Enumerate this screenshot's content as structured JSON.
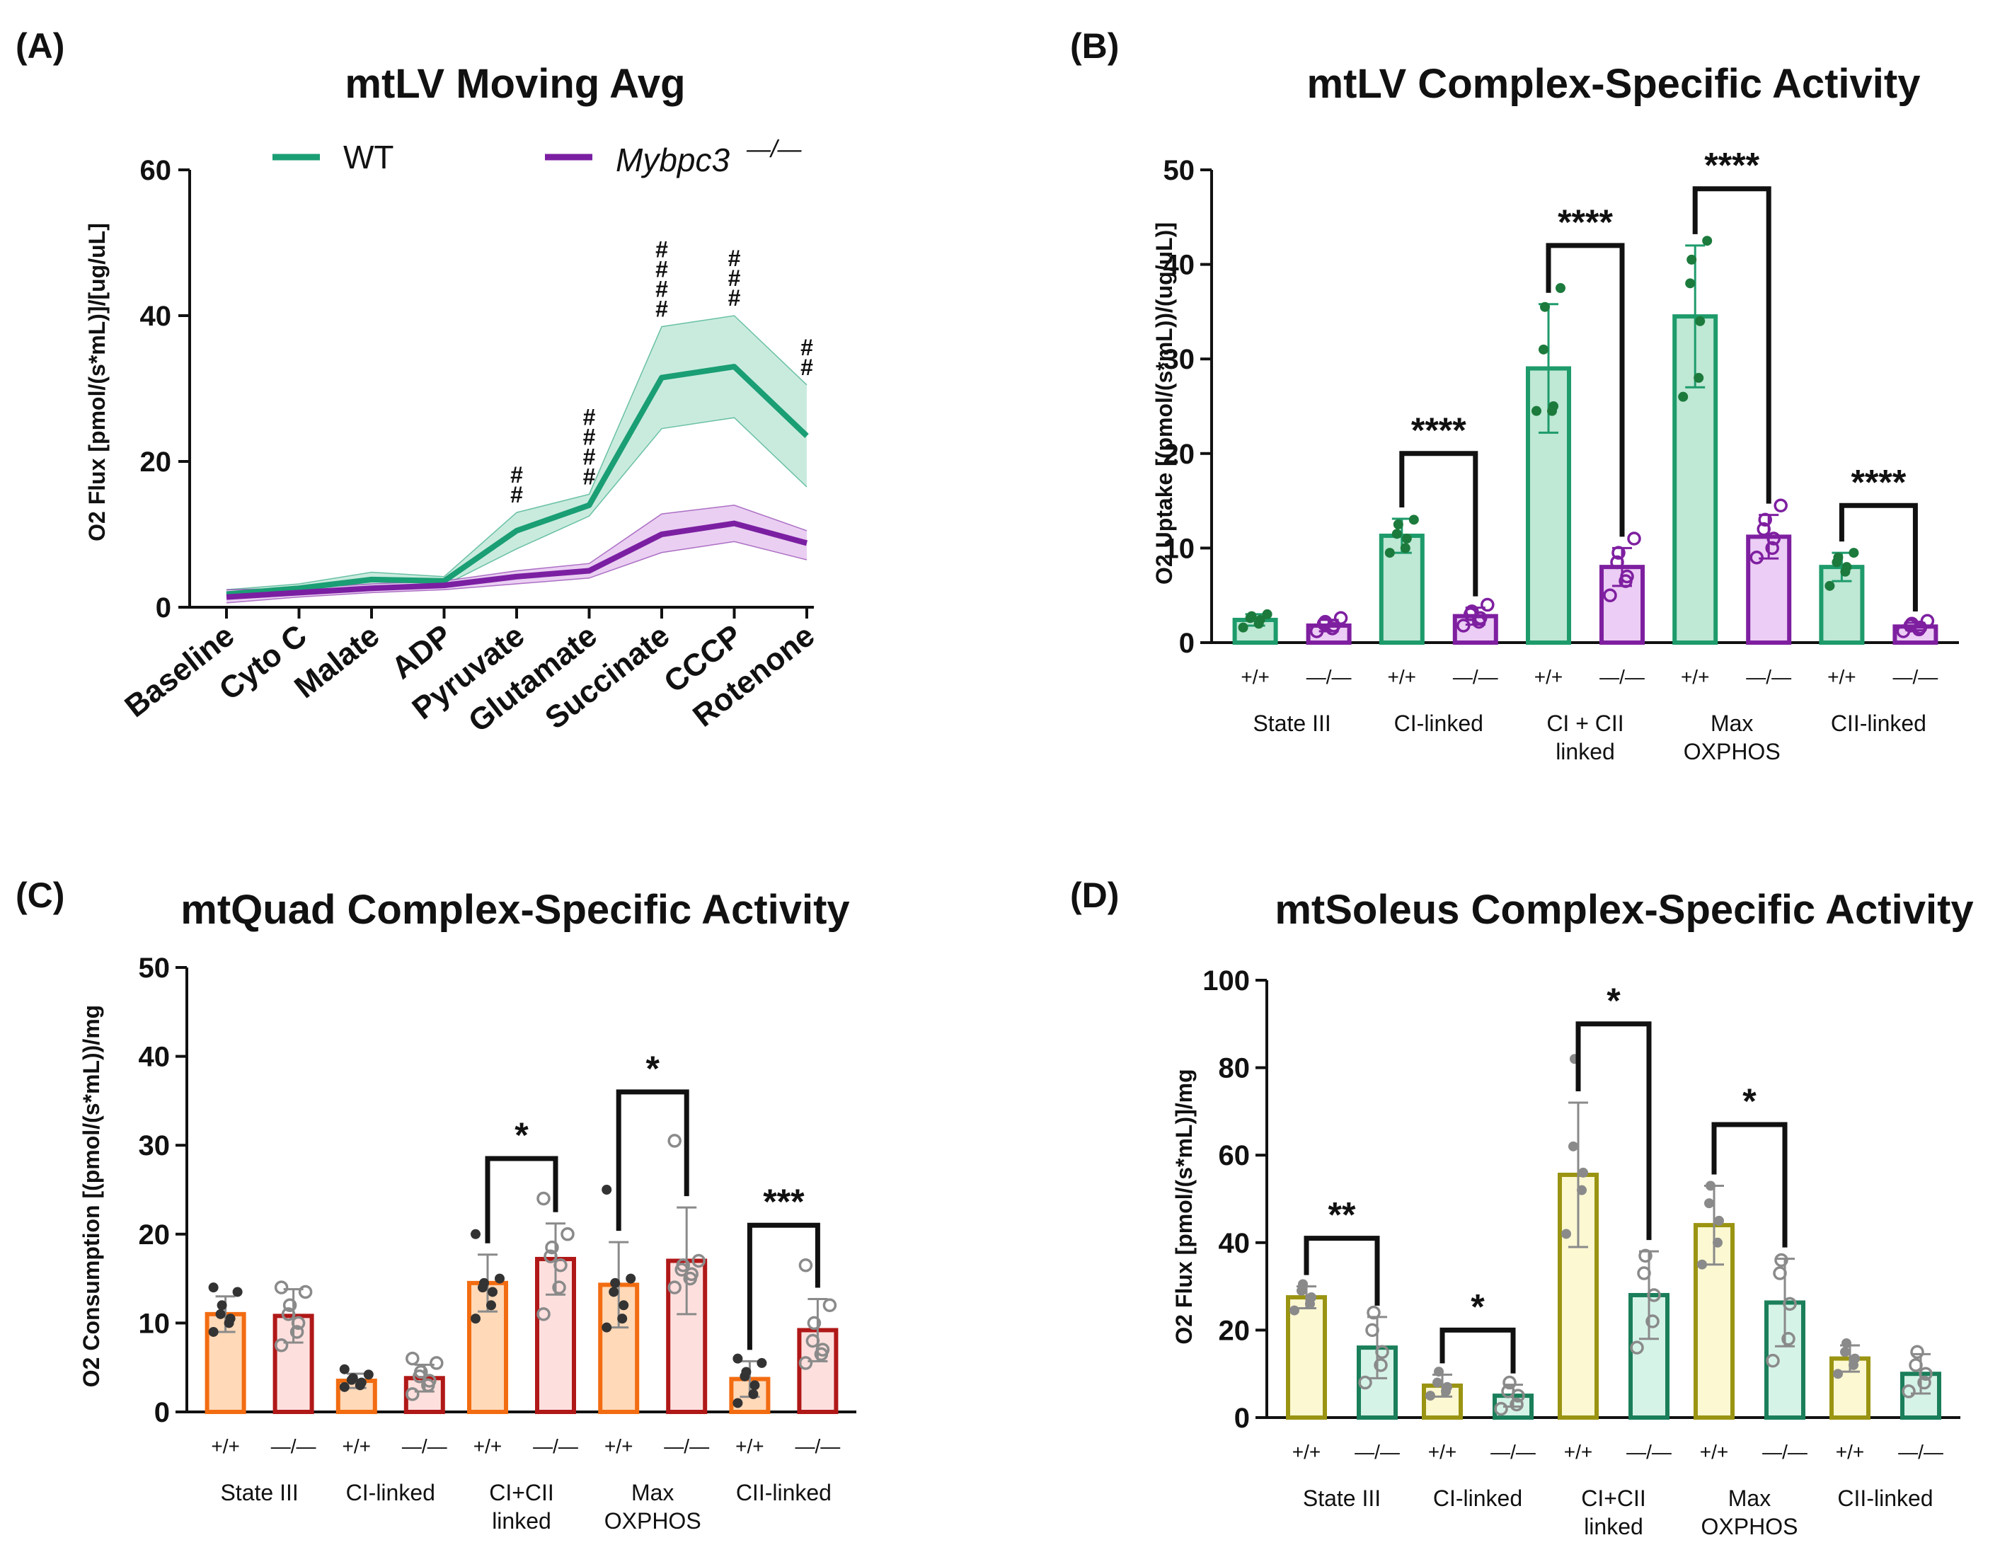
{
  "colors": {
    "wt_line": "#1a9e74",
    "wt_band": "#bfe8d8",
    "ko_line": "#7b1fa2",
    "ko_band": "#e6c7f0",
    "B_wt_fill": "#bfe8d5",
    "B_wt_edge": "#1e9b6b",
    "B_wt_dot": "#1c7a3c",
    "B_ko_fill": "#eccdf5",
    "B_ko_edge": "#7e1fa0",
    "C_wt_fill": "#ffd9b8",
    "C_wt_edge": "#f26c11",
    "C_ko_fill": "#fde0de",
    "C_ko_edge": "#b01818",
    "D_wt_fill": "#fbf8d2",
    "D_wt_edge": "#9a9412",
    "D_ko_fill": "#d6f3e8",
    "D_ko_edge": "#1a7f5a",
    "dot_dark": "#333333",
    "dot_grey": "#8a8a8a"
  },
  "chart_data": [
    {
      "id": "A",
      "panel_label": "(A)",
      "type": "line",
      "title": "mtLV Moving Avg",
      "ylabel": "O2 Flux [pmol/(s*mL)]/[ug/uL]",
      "ylim": [
        0,
        60
      ],
      "yticks": [
        "0",
        "20",
        "40",
        "60"
      ],
      "categories": [
        "Baseline",
        "Cyto C",
        "Malate",
        "ADP",
        "Pyruvate",
        "Glutamate",
        "Succinate",
        "CCCP",
        "Rotenone"
      ],
      "legend": [
        "WT",
        "Mybpc3",
        "—/—"
      ],
      "series": [
        {
          "name": "WT",
          "values": [
            1.8,
            2.6,
            3.8,
            3.6,
            10.5,
            14.0,
            31.5,
            33.0,
            23.5
          ],
          "lower": [
            1.2,
            2.0,
            2.8,
            3.0,
            8.0,
            12.5,
            24.5,
            26.0,
            16.5
          ],
          "upper": [
            2.4,
            3.2,
            4.8,
            4.2,
            13.0,
            15.5,
            38.5,
            40.0,
            30.5
          ]
        },
        {
          "name": "Mybpc3-/-",
          "values": [
            1.4,
            2.0,
            2.6,
            3.0,
            4.2,
            5.0,
            10.0,
            11.5,
            8.8
          ],
          "lower": [
            0.6,
            1.4,
            2.0,
            2.4,
            3.2,
            4.0,
            7.5,
            9.0,
            6.5
          ],
          "upper": [
            2.4,
            2.6,
            3.2,
            3.6,
            5.0,
            6.0,
            12.8,
            14.0,
            10.5
          ]
        }
      ],
      "annotations": [
        {
          "category": "Pyruvate",
          "text": "#",
          "count": 2
        },
        {
          "category": "Glutamate",
          "text": "#",
          "count": 4
        },
        {
          "category": "Succinate",
          "text": "#",
          "count": 4
        },
        {
          "category": "CCCP",
          "text": "#",
          "count": 3
        },
        {
          "category": "Rotenone",
          "text": "#",
          "count": 2
        }
      ]
    },
    {
      "id": "B",
      "panel_label": "(B)",
      "type": "bar",
      "title": "mtLV Complex-Specific Activity",
      "ylabel": "O2 Uptake [(pmol/(s*mL))/(ug/uL)]",
      "ylim": [
        0,
        50
      ],
      "yticks": [
        "0",
        "10",
        "20",
        "30",
        "40",
        "50"
      ],
      "genotype_labels": [
        "+/+",
        "—/—"
      ],
      "categories": [
        [
          "State III"
        ],
        [
          "CI-linked"
        ],
        [
          "CI + CII",
          "linked"
        ],
        [
          "Max",
          "OXPHOS"
        ],
        [
          "CII-linked"
        ]
      ],
      "series": [
        {
          "name": "+/+",
          "values": [
            2.4,
            11.3,
            29.0,
            34.5,
            8.0
          ],
          "errors": [
            0.6,
            1.8,
            6.8,
            7.5,
            1.5
          ],
          "points": [
            [
              1.6,
              2.0,
              2.4,
              2.6,
              2.8,
              3.0
            ],
            [
              9.5,
              10.0,
              11.0,
              11.5,
              12.5,
              13.0
            ],
            [
              24.5,
              24.5,
              25.0,
              31.0,
              35.5,
              37.5
            ],
            [
              26.0,
              28.0,
              34.0,
              38.0,
              40.5,
              42.5
            ],
            [
              6.0,
              7.5,
              8.0,
              8.5,
              9.0,
              9.5
            ]
          ]
        },
        {
          "name": "—/—",
          "values": [
            1.8,
            2.8,
            8.0,
            11.2,
            1.7
          ],
          "errors": [
            0.6,
            0.9,
            2.0,
            2.3,
            0.4
          ],
          "points": [
            [
              1.2,
              1.5,
              1.8,
              2.0,
              2.2,
              2.6
            ],
            [
              1.8,
              2.2,
              2.6,
              3.0,
              3.3,
              4.0
            ],
            [
              5.0,
              6.5,
              7.0,
              8.5,
              9.5,
              11.0
            ],
            [
              9.0,
              10.0,
              11.0,
              12.0,
              13.0,
              14.5
            ],
            [
              1.2,
              1.4,
              1.6,
              1.8,
              2.0,
              2.3
            ]
          ]
        }
      ],
      "significance": [
        {
          "category": 1,
          "label": "****",
          "level": 20
        },
        {
          "category": 2,
          "label": "****",
          "level": 42
        },
        {
          "category": 3,
          "label": "****",
          "level": 48
        },
        {
          "category": 4,
          "label": "****",
          "level": 14.5
        }
      ]
    },
    {
      "id": "C",
      "panel_label": "(C)",
      "type": "bar",
      "title": "mtQuad Complex-Specific Activity",
      "ylabel": "O2 Consumption [(pmol/(s*mL))/mg",
      "ylim": [
        0,
        50
      ],
      "yticks": [
        "0",
        "10",
        "20",
        "30",
        "40",
        "50"
      ],
      "genotype_labels": [
        "+/+",
        "—/—"
      ],
      "categories": [
        [
          "State III"
        ],
        [
          "CI-linked"
        ],
        [
          "CI+CII",
          "linked"
        ],
        [
          "Max",
          "OXPHOS"
        ],
        [
          "CII-linked"
        ]
      ],
      "series": [
        {
          "name": "+/+",
          "values": [
            11.0,
            3.5,
            14.5,
            14.3,
            3.7
          ],
          "errors": [
            2.0,
            0.8,
            3.2,
            4.8,
            2.0
          ],
          "points": [
            [
              9.0,
              10.0,
              10.5,
              11.0,
              12.0,
              13.5,
              14.0
            ],
            [
              2.8,
              3.0,
              3.3,
              3.6,
              3.8,
              4.2,
              4.8
            ],
            [
              10.5,
              12.0,
              13.5,
              14.0,
              14.5,
              15.0,
              20.0
            ],
            [
              9.5,
              10.5,
              12.0,
              13.5,
              14.5,
              15.0,
              25.0
            ],
            [
              1.0,
              2.0,
              3.0,
              4.0,
              4.5,
              5.5,
              6.0
            ]
          ]
        },
        {
          "name": "—/—",
          "values": [
            10.8,
            3.8,
            17.2,
            17.0,
            9.2
          ],
          "errors": [
            3.0,
            1.5,
            4.0,
            6.0,
            3.5
          ],
          "points": [
            [
              7.5,
              9.0,
              10.0,
              11.0,
              12.0,
              13.5,
              14.0
            ],
            [
              2.0,
              3.0,
              3.5,
              4.0,
              4.5,
              5.5,
              6.0
            ],
            [
              11.0,
              14.0,
              16.5,
              17.5,
              18.5,
              20.0,
              24.0
            ],
            [
              14.0,
              15.0,
              15.5,
              16.0,
              16.5,
              17.0,
              30.5
            ],
            [
              5.5,
              6.5,
              7.0,
              8.0,
              10.0,
              12.0,
              16.5
            ]
          ]
        }
      ],
      "significance": [
        {
          "category": 2,
          "label": "*",
          "level": 28.5
        },
        {
          "category": 3,
          "label": "*",
          "level": 36
        },
        {
          "category": 4,
          "label": "***",
          "level": 21
        }
      ]
    },
    {
      "id": "D",
      "panel_label": "(D)",
      "type": "bar",
      "title": "mtSoleus Complex-Specific Activity",
      "ylabel": "O2 Flux [pmol/(s*mL)]/mg",
      "ylim": [
        0,
        100
      ],
      "yticks": [
        "0",
        "20",
        "40",
        "60",
        "80",
        "100"
      ],
      "genotype_labels": [
        "+/+",
        "—/—"
      ],
      "categories": [
        [
          "State III"
        ],
        [
          "CI-linked"
        ],
        [
          "CI+CII",
          "linked"
        ],
        [
          "Max",
          "OXPHOS"
        ],
        [
          "CII-linked"
        ]
      ],
      "series": [
        {
          "name": "+/+",
          "values": [
            27.5,
            7.3,
            55.5,
            44.0,
            13.5
          ],
          "errors": [
            2.5,
            2.5,
            16.5,
            9.0,
            3.0
          ],
          "points": [
            [
              24.5,
              26.0,
              27.5,
              29.0,
              30.5
            ],
            [
              5.0,
              6.0,
              7.0,
              8.0,
              10.5
            ],
            [
              42.0,
              52.0,
              56.0,
              62.0,
              82.0
            ],
            [
              35.0,
              40.0,
              45.0,
              49.0,
              53.0
            ],
            [
              10.0,
              12.0,
              13.5,
              15.0,
              17.0
            ]
          ]
        },
        {
          "name": "—/—",
          "values": [
            16.0,
            5.0,
            28.0,
            26.3,
            10.0
          ],
          "errors": [
            7.0,
            2.5,
            10.0,
            10.0,
            4.5
          ],
          "points": [
            [
              8.0,
              12.0,
              15.0,
              20.0,
              24.0
            ],
            [
              2.0,
              3.0,
              5.0,
              6.0,
              8.0
            ],
            [
              16.0,
              22.0,
              28.0,
              33.0,
              37.0
            ],
            [
              13.0,
              18.0,
              26.0,
              33.0,
              36.0
            ],
            [
              6.0,
              8.0,
              10.0,
              12.0,
              15.0
            ]
          ]
        }
      ],
      "significance": [
        {
          "category": 0,
          "label": "**",
          "level": 41
        },
        {
          "category": 1,
          "label": "*",
          "level": 20
        },
        {
          "category": 2,
          "label": "*",
          "level": 90
        },
        {
          "category": 3,
          "label": "*",
          "level": 67
        }
      ]
    }
  ]
}
